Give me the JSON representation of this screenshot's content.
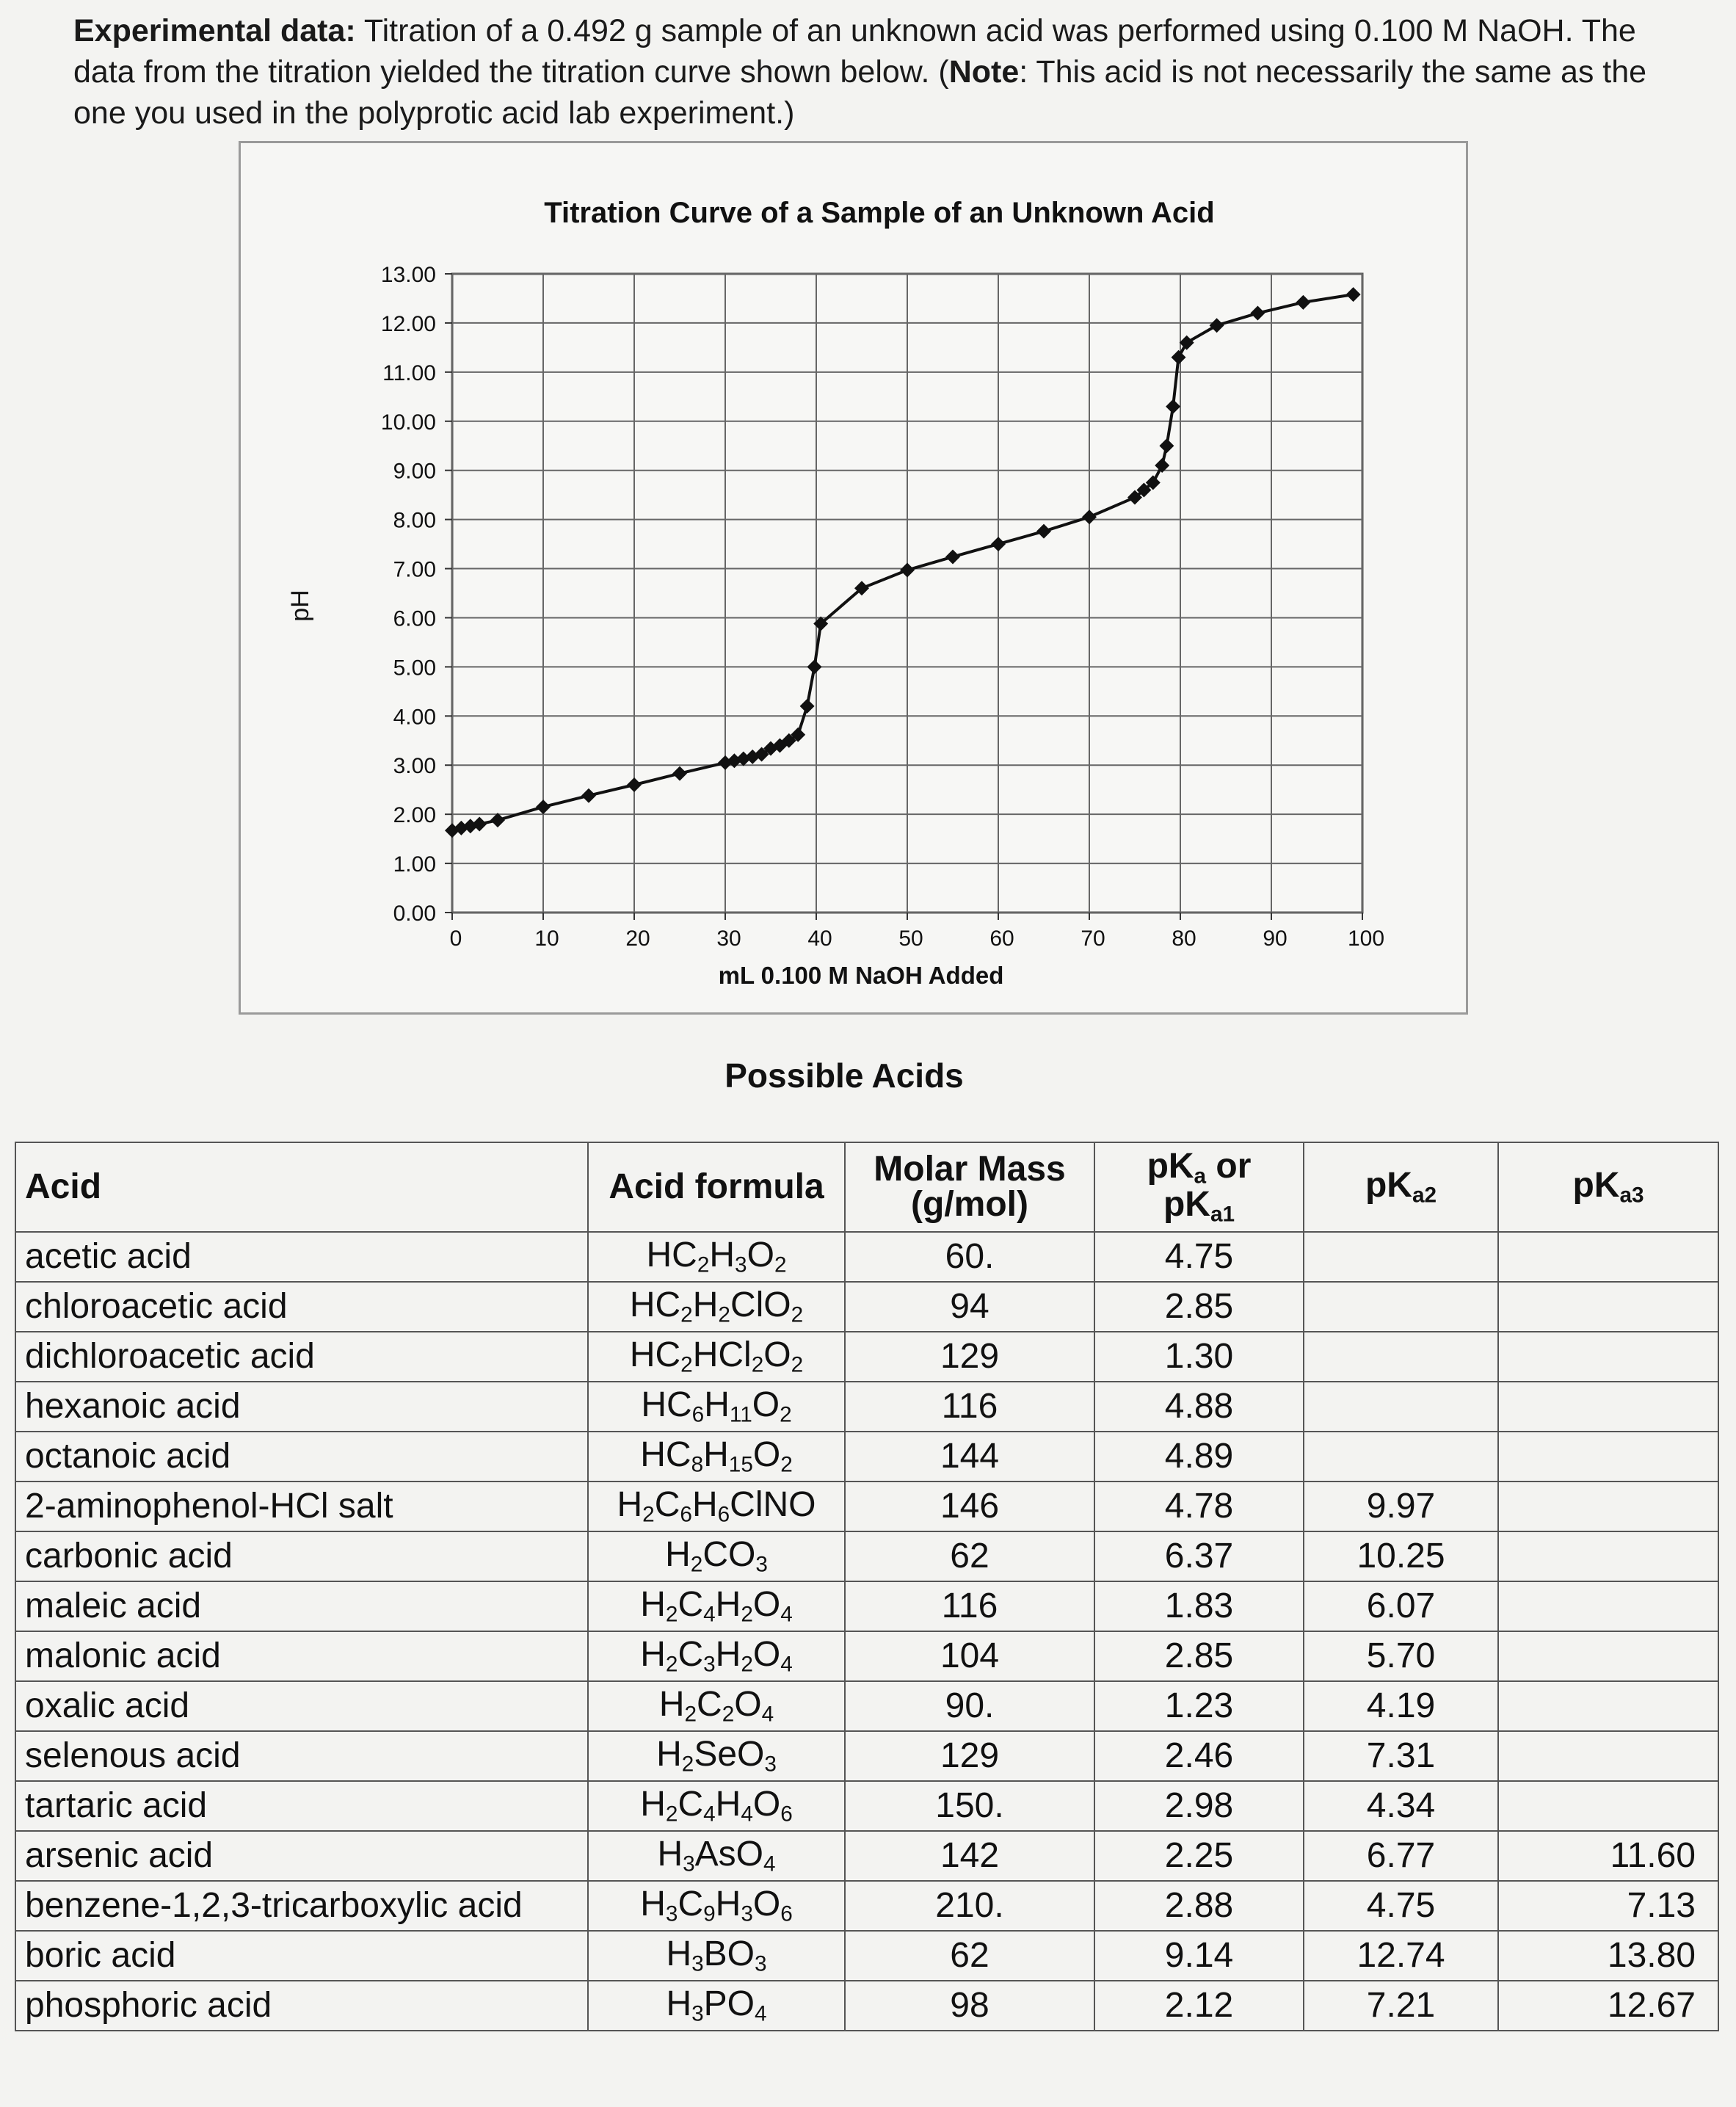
{
  "intro": {
    "label": "Experimental data:",
    "text_1": " Titration of a 0.492 g sample of an unknown acid was performed using 0.100 M NaOH.  The data from the titration yielded the titration curve shown below.  (",
    "note_label": "Note",
    "text_2": ":  This acid is not necessarily the same as the one you used in the polyprotic acid lab experiment.)"
  },
  "chart_data": {
    "type": "scatter",
    "title": "Titration Curve of a Sample of an Unknown Acid",
    "xlabel": "mL 0.100 M NaOH Added",
    "ylabel": "pH",
    "xlim": [
      0,
      100
    ],
    "ylim": [
      0,
      13
    ],
    "x_ticks": [
      "0",
      "10",
      "20",
      "30",
      "40",
      "50",
      "60",
      "70",
      "80",
      "90",
      "100"
    ],
    "y_ticks": [
      "0.00",
      "1.00",
      "2.00",
      "3.00",
      "4.00",
      "5.00",
      "6.00",
      "7.00",
      "8.00",
      "9.00",
      "10.00",
      "11.00",
      "12.00",
      "13.00"
    ],
    "grid": true,
    "points": [
      [
        0,
        1.67
      ],
      [
        1,
        1.72
      ],
      [
        2,
        1.76
      ],
      [
        3,
        1.8
      ],
      [
        5,
        1.88
      ],
      [
        10,
        2.15
      ],
      [
        15,
        2.38
      ],
      [
        20,
        2.6
      ],
      [
        25,
        2.83
      ],
      [
        30,
        3.05
      ],
      [
        31,
        3.09
      ],
      [
        32,
        3.13
      ],
      [
        33,
        3.17
      ],
      [
        34,
        3.22
      ],
      [
        35,
        3.34
      ],
      [
        36,
        3.4
      ],
      [
        37,
        3.5
      ],
      [
        38,
        3.62
      ],
      [
        39,
        4.2
      ],
      [
        39.8,
        5.0
      ],
      [
        40.5,
        5.88
      ],
      [
        45,
        6.6
      ],
      [
        50,
        6.97
      ],
      [
        55,
        7.24
      ],
      [
        60,
        7.5
      ],
      [
        65,
        7.76
      ],
      [
        70,
        8.05
      ],
      [
        75,
        8.45
      ],
      [
        76,
        8.6
      ],
      [
        77,
        8.75
      ],
      [
        78,
        9.1
      ],
      [
        78.5,
        9.5
      ],
      [
        79.2,
        10.3
      ],
      [
        79.8,
        11.3
      ],
      [
        80.7,
        11.6
      ],
      [
        84,
        11.95
      ],
      [
        88.5,
        12.2
      ],
      [
        93.5,
        12.42
      ],
      [
        99,
        12.58
      ]
    ]
  },
  "table": {
    "title": "Possible Acids",
    "headers": {
      "acid": "Acid",
      "formula": "Acid formula",
      "molar_mass_1": "Molar Mass",
      "molar_mass_2": "(g/mol)",
      "pka_1": "pK",
      "pka_1_sub": "a",
      "pka_1_or": " or",
      "pka_1b": "pK",
      "pka_1b_sub": "a1",
      "pka2": "pK",
      "pka2_sub": "a2",
      "pka3": "pK",
      "pka3_sub": "a3"
    },
    "rows": [
      {
        "acid": "acetic acid",
        "formula": [
          [
            "HC",
            ""
          ],
          [
            "2",
            "s"
          ],
          [
            "H",
            ""
          ],
          [
            "3",
            "s"
          ],
          [
            "O",
            ""
          ],
          [
            "2",
            "s"
          ]
        ],
        "mass": "60.",
        "pka1": "4.75",
        "pka2": "",
        "pka3": ""
      },
      {
        "acid": "chloroacetic acid",
        "formula": [
          [
            "HC",
            ""
          ],
          [
            "2",
            "s"
          ],
          [
            "H",
            ""
          ],
          [
            "2",
            "s"
          ],
          [
            "ClO",
            ""
          ],
          [
            "2",
            "s"
          ]
        ],
        "mass": "94",
        "pka1": "2.85",
        "pka2": "",
        "pka3": ""
      },
      {
        "acid": "dichloroacetic acid",
        "formula": [
          [
            "HC",
            ""
          ],
          [
            "2",
            "s"
          ],
          [
            "HCl",
            ""
          ],
          [
            "2",
            "s"
          ],
          [
            "O",
            ""
          ],
          [
            "2",
            "s"
          ]
        ],
        "mass": "129",
        "pka1": "1.30",
        "pka2": "",
        "pka3": ""
      },
      {
        "acid": "hexanoic acid",
        "formula": [
          [
            "HC",
            ""
          ],
          [
            "6",
            "s"
          ],
          [
            "H",
            ""
          ],
          [
            "11",
            "s"
          ],
          [
            "O",
            ""
          ],
          [
            "2",
            "s"
          ]
        ],
        "mass": "116",
        "pka1": "4.88",
        "pka2": "",
        "pka3": ""
      },
      {
        "acid": "octanoic acid",
        "formula": [
          [
            "HC",
            ""
          ],
          [
            "8",
            "s"
          ],
          [
            "H",
            ""
          ],
          [
            "15",
            "s"
          ],
          [
            "O",
            ""
          ],
          [
            "2",
            "s"
          ]
        ],
        "mass": "144",
        "pka1": "4.89",
        "pka2": "",
        "pka3": ""
      },
      {
        "acid": "2-aminophenol-HCl salt",
        "formula": [
          [
            "H",
            ""
          ],
          [
            "2",
            "s"
          ],
          [
            "C",
            ""
          ],
          [
            "6",
            "s"
          ],
          [
            "H",
            ""
          ],
          [
            "6",
            "s"
          ],
          [
            "ClNO",
            ""
          ]
        ],
        "mass": "146",
        "pka1": "4.78",
        "pka2": "9.97",
        "pka3": ""
      },
      {
        "acid": "carbonic acid",
        "formula": [
          [
            "H",
            ""
          ],
          [
            "2",
            "s"
          ],
          [
            "CO",
            ""
          ],
          [
            "3",
            "s"
          ]
        ],
        "mass": "62",
        "pka1": "6.37",
        "pka2": "10.25",
        "pka3": ""
      },
      {
        "acid": "maleic acid",
        "formula": [
          [
            "H",
            ""
          ],
          [
            "2",
            "s"
          ],
          [
            "C",
            ""
          ],
          [
            "4",
            "s"
          ],
          [
            "H",
            ""
          ],
          [
            "2",
            "s"
          ],
          [
            "O",
            ""
          ],
          [
            "4",
            "s"
          ]
        ],
        "mass": "116",
        "pka1": "1.83",
        "pka2": "6.07",
        "pka3": ""
      },
      {
        "acid": "malonic acid",
        "formula": [
          [
            "H",
            ""
          ],
          [
            "2",
            "s"
          ],
          [
            "C",
            ""
          ],
          [
            "3",
            "s"
          ],
          [
            "H",
            ""
          ],
          [
            "2",
            "s"
          ],
          [
            "O",
            ""
          ],
          [
            "4",
            "s"
          ]
        ],
        "mass": "104",
        "pka1": "2.85",
        "pka2": "5.70",
        "pka3": ""
      },
      {
        "acid": "oxalic acid",
        "formula": [
          [
            "H",
            ""
          ],
          [
            "2",
            "s"
          ],
          [
            "C",
            ""
          ],
          [
            "2",
            "s"
          ],
          [
            "O",
            ""
          ],
          [
            "4",
            "s"
          ]
        ],
        "mass": "90.",
        "pka1": "1.23",
        "pka2": "4.19",
        "pka3": ""
      },
      {
        "acid": "selenous acid",
        "formula": [
          [
            "H",
            ""
          ],
          [
            "2",
            "s"
          ],
          [
            "SeO",
            ""
          ],
          [
            "3",
            "s"
          ]
        ],
        "mass": "129",
        "pka1": "2.46",
        "pka2": "7.31",
        "pka3": ""
      },
      {
        "acid": "tartaric acid",
        "formula": [
          [
            "H",
            ""
          ],
          [
            "2",
            "s"
          ],
          [
            "C",
            ""
          ],
          [
            "4",
            "s"
          ],
          [
            "H",
            ""
          ],
          [
            "4",
            "s"
          ],
          [
            "O",
            ""
          ],
          [
            "6",
            "s"
          ]
        ],
        "mass": "150.",
        "pka1": "2.98",
        "pka2": "4.34",
        "pka3": ""
      },
      {
        "acid": "arsenic acid",
        "formula": [
          [
            "H",
            ""
          ],
          [
            "3",
            "s"
          ],
          [
            "AsO",
            ""
          ],
          [
            "4",
            "s"
          ]
        ],
        "mass": "142",
        "pka1": "2.25",
        "pka2": "6.77",
        "pka3": "11.60"
      },
      {
        "acid": "benzene-1,2,3-tricarboxylic acid",
        "formula": [
          [
            "H",
            ""
          ],
          [
            "3",
            "s"
          ],
          [
            "C",
            ""
          ],
          [
            "9",
            "s"
          ],
          [
            "H",
            ""
          ],
          [
            "3",
            "s"
          ],
          [
            "O",
            ""
          ],
          [
            "6",
            "s"
          ]
        ],
        "mass": "210.",
        "pka1": "2.88",
        "pka2": "4.75",
        "pka3": "7.13"
      },
      {
        "acid": "boric acid",
        "formula": [
          [
            "H",
            ""
          ],
          [
            "3",
            "s"
          ],
          [
            "BO",
            ""
          ],
          [
            "3",
            "s"
          ]
        ],
        "mass": "62",
        "pka1": "9.14",
        "pka2": "12.74",
        "pka3": "13.80"
      },
      {
        "acid": "phosphoric acid",
        "formula": [
          [
            "H",
            ""
          ],
          [
            "3",
            "s"
          ],
          [
            "PO",
            ""
          ],
          [
            "4",
            "s"
          ]
        ],
        "mass": "98",
        "pka1": "2.12",
        "pka2": "7.21",
        "pka3": "12.67"
      }
    ]
  }
}
